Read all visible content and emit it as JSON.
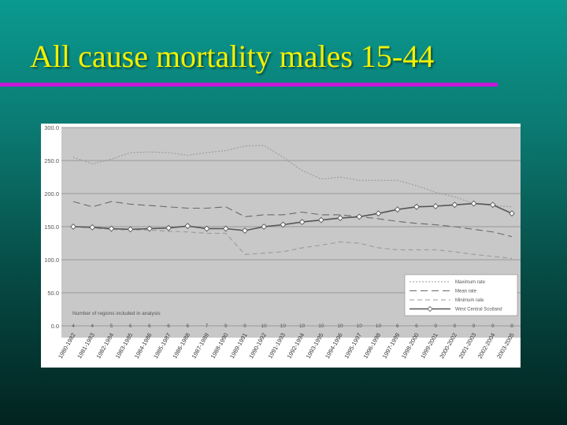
{
  "slide": {
    "title": "All cause mortality males 15-44"
  },
  "chart_data": {
    "type": "line",
    "categories": [
      "1980-1982",
      "1981-1983",
      "1982-1984",
      "1983-1985",
      "1984-1986",
      "1985-1987",
      "1986-1988",
      "1987-1989",
      "1988-1990",
      "1989-1991",
      "1990-1992",
      "1991-1993",
      "1992-1994",
      "1993-1995",
      "1994-1996",
      "1995-1997",
      "1996-1998",
      "1997-1999",
      "1998-2000",
      "1999-2001",
      "2000-2002",
      "2001-2003",
      "2002-2004",
      "2003-2005"
    ],
    "series": [
      {
        "name": "Maximum rate",
        "style": "dotted",
        "color": "#9a9a9a",
        "values": [
          255,
          245,
          252,
          262,
          263,
          262,
          258,
          262,
          265,
          272,
          273,
          255,
          235,
          222,
          225,
          220,
          220,
          220,
          212,
          202,
          195,
          185,
          182,
          180
        ]
      },
      {
        "name": "Mean rate",
        "style": "dashed",
        "color": "#6a6a6a",
        "values": [
          188,
          180,
          188,
          184,
          182,
          180,
          178,
          178,
          180,
          165,
          168,
          168,
          172,
          168,
          168,
          165,
          162,
          158,
          155,
          153,
          150,
          146,
          142,
          135
        ]
      },
      {
        "name": "Minimum rate",
        "style": "dashed-light",
        "color": "#9a9a9a",
        "values": [
          150,
          148,
          146,
          145,
          145,
          143,
          142,
          140,
          140,
          108,
          110,
          112,
          118,
          122,
          127,
          125,
          118,
          115,
          115,
          115,
          112,
          108,
          105,
          102
        ]
      },
      {
        "name": "West Central Scotland",
        "style": "solid-diamond",
        "color": "#555555",
        "values": [
          150,
          149,
          147,
          146,
          147,
          148,
          151,
          147,
          147,
          144,
          150,
          153,
          157,
          160,
          163,
          165,
          170,
          176,
          180,
          181,
          183,
          185,
          183,
          170
        ]
      }
    ],
    "ylim": [
      0,
      300
    ],
    "yticks": [
      "0.0",
      "50.0",
      "100.0",
      "150.0",
      "200.0",
      "250.0",
      "300.0"
    ],
    "ytick_values": [
      0,
      50,
      100,
      150,
      200,
      250,
      300
    ],
    "count_label": "Number of regions included in analysis",
    "region_counts": [
      "4",
      "4",
      "5",
      "6",
      "6",
      "6",
      "6",
      "7",
      "9",
      "9",
      "10",
      "10",
      "10",
      "10",
      "10",
      "10",
      "10",
      "6",
      "6",
      "9",
      "9",
      "9",
      "9",
      "8"
    ],
    "grid": true,
    "legend_position": "bottom-right"
  }
}
